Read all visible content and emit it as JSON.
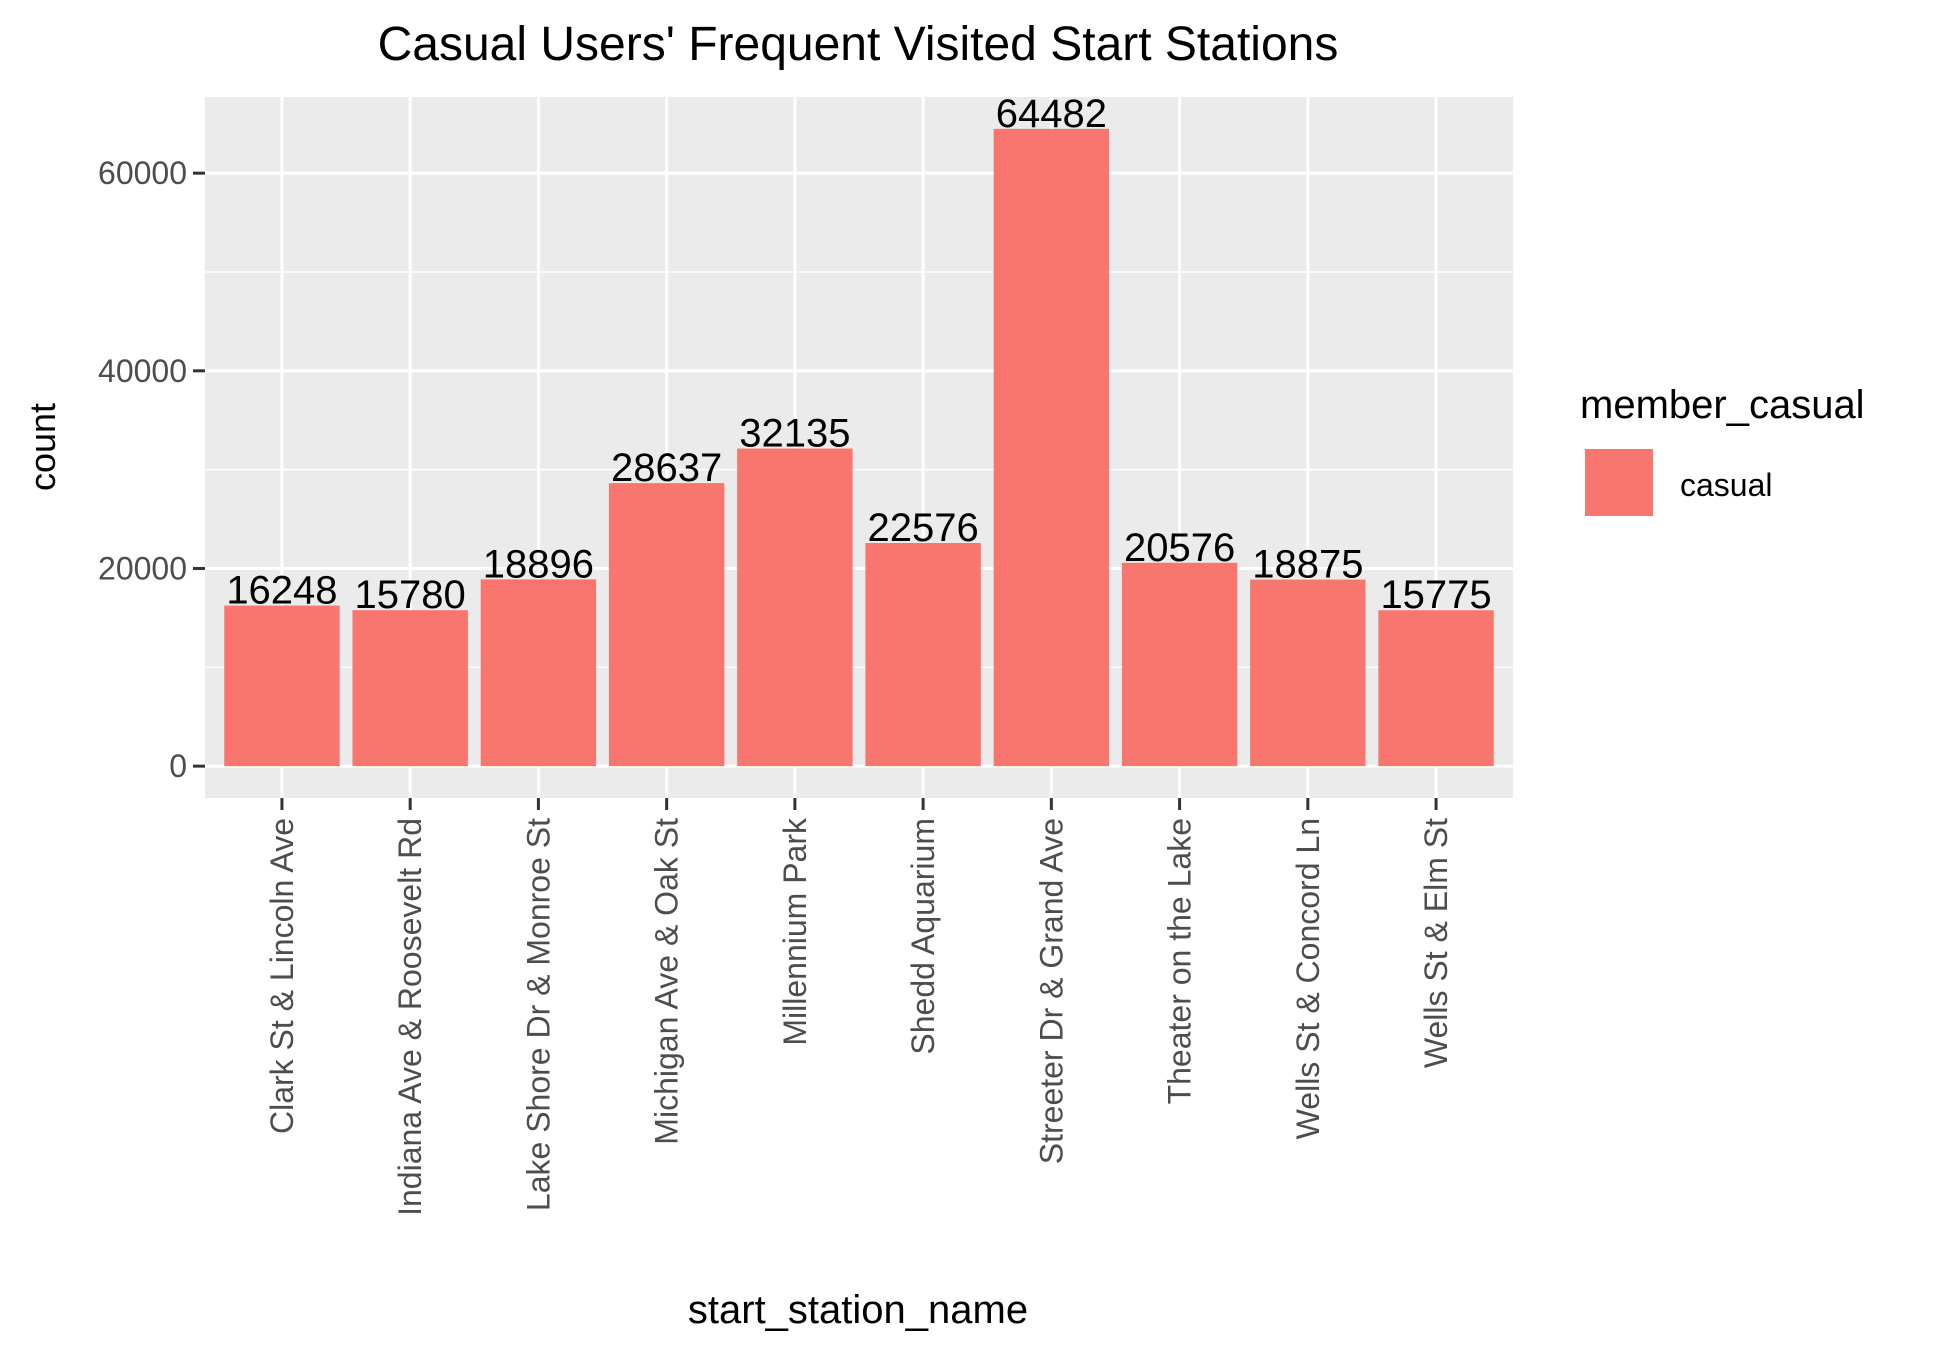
{
  "chart_data": {
    "type": "bar",
    "title": "Casual Users' Frequent Visited Start Stations",
    "xlabel": "start_station_name",
    "ylabel": "count",
    "categories": [
      "Clark St & Lincoln Ave",
      "Indiana Ave & Roosevelt Rd",
      "Lake Shore Dr & Monroe St",
      "Michigan Ave & Oak St",
      "Millennium Park",
      "Shedd Aquarium",
      "Streeter Dr & Grand Ave",
      "Theater on the Lake",
      "Wells St & Concord Ln",
      "Wells St & Elm St"
    ],
    "series": [
      {
        "name": "casual",
        "values": [
          16248,
          15780,
          18896,
          28637,
          32135,
          22576,
          64482,
          20576,
          18875,
          15775
        ]
      }
    ],
    "data_labels": [
      "16248",
      "15780",
      "18896",
      "28637",
      "32135",
      "22576",
      "64482",
      "20576",
      "18875",
      "15775"
    ],
    "y_ticks": [
      0,
      20000,
      40000,
      60000
    ],
    "y_tick_labels": [
      "0",
      "20000",
      "40000",
      "60000"
    ],
    "ylim": [
      -3224,
      67706
    ],
    "grid": true,
    "legend": {
      "title": "member_casual",
      "entries": [
        "casual"
      ],
      "position": "right"
    },
    "colors": {
      "bar": "#F8766D",
      "panel": "#EBEBEB",
      "grid": "#FFFFFF"
    }
  }
}
